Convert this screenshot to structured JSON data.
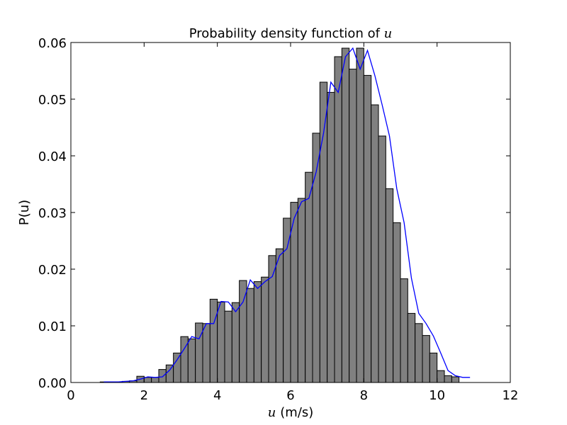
{
  "chart_data": {
    "type": "bar",
    "title_prefix": "Probability density function of ",
    "title_var": "u",
    "xlabel_var": "u",
    "xlabel_unit": "(m/s)",
    "ylabel": "P(u)",
    "xlim": [
      0,
      12
    ],
    "ylim": [
      0,
      0.06
    ],
    "x_ticks": [
      0,
      2,
      4,
      6,
      8,
      10,
      12
    ],
    "x_tick_labels": [
      "0",
      "2",
      "4",
      "6",
      "8",
      "10",
      "12"
    ],
    "y_ticks": [
      0,
      0.01,
      0.02,
      0.03,
      0.04,
      0.05,
      0.06
    ],
    "y_tick_labels": [
      "0.00",
      "0.01",
      "0.02",
      "0.03",
      "0.04",
      "0.05",
      "0.06"
    ],
    "grid": false,
    "legend": "none",
    "bar_color": "#808080",
    "bar_edge_color": "#000000",
    "line_color": "#0000ff",
    "bin_width": 0.2,
    "bin_centers": [
      0.9,
      1.1,
      1.3,
      1.5,
      1.7,
      1.9,
      2.1,
      2.3,
      2.5,
      2.7,
      2.9,
      3.1,
      3.3,
      3.5,
      3.7,
      3.9,
      4.1,
      4.3,
      4.5,
      4.7,
      4.9,
      5.1,
      5.3,
      5.5,
      5.7,
      5.9,
      6.1,
      6.3,
      6.5,
      6.7,
      6.9,
      7.1,
      7.3,
      7.5,
      7.7,
      7.9,
      8.1,
      8.3,
      8.5,
      8.7,
      8.9,
      9.1,
      9.3,
      9.5,
      9.7,
      9.9,
      10.1,
      10.3,
      10.5,
      10.7,
      10.9
    ],
    "values": [
      0.0001,
      0.0001,
      0.0001,
      0.0002,
      0.0003,
      0.0011,
      0.0009,
      0.0009,
      0.0023,
      0.0031,
      0.0052,
      0.0081,
      0.0077,
      0.0105,
      0.0104,
      0.0147,
      0.0142,
      0.0126,
      0.0141,
      0.018,
      0.0166,
      0.0178,
      0.0186,
      0.0224,
      0.0236,
      0.029,
      0.0318,
      0.0325,
      0.0371,
      0.044,
      0.053,
      0.0512,
      0.0575,
      0.059,
      0.0553,
      0.059,
      0.0542,
      0.049,
      0.0435,
      0.0342,
      0.0282,
      0.0183,
      0.0122,
      0.0104,
      0.0083,
      0.0052,
      0.0021,
      0.0012,
      0.001,
      0.0,
      0.0
    ],
    "line_x": [
      0.9,
      1.1,
      1.3,
      1.5,
      1.7,
      1.9,
      2.1,
      2.3,
      2.5,
      2.7,
      2.9,
      3.1,
      3.3,
      3.5,
      3.7,
      3.9,
      4.1,
      4.3,
      4.5,
      4.7,
      4.9,
      5.1,
      5.3,
      5.5,
      5.7,
      5.9,
      6.1,
      6.3,
      6.5,
      6.7,
      6.9,
      7.1,
      7.3,
      7.5,
      7.7,
      7.9,
      8.1,
      8.3,
      8.5,
      8.7,
      8.9,
      9.1,
      9.3,
      9.5,
      9.7,
      9.9,
      10.1,
      10.3,
      10.5,
      10.7,
      10.9
    ],
    "line_y": [
      0.0001,
      0.0001,
      0.0001,
      0.0002,
      0.0003,
      0.0006,
      0.001,
      0.0009,
      0.001,
      0.0022,
      0.004,
      0.006,
      0.0081,
      0.0077,
      0.0104,
      0.0104,
      0.0143,
      0.0142,
      0.0125,
      0.0142,
      0.0181,
      0.0166,
      0.0178,
      0.0187,
      0.0224,
      0.0236,
      0.029,
      0.0319,
      0.0325,
      0.0372,
      0.044,
      0.053,
      0.0512,
      0.0575,
      0.059,
      0.0553,
      0.0586,
      0.0542,
      0.049,
      0.0435,
      0.0342,
      0.0282,
      0.0184,
      0.0122,
      0.0104,
      0.0082,
      0.0052,
      0.0021,
      0.0012,
      0.0009,
      0.0009
    ]
  }
}
